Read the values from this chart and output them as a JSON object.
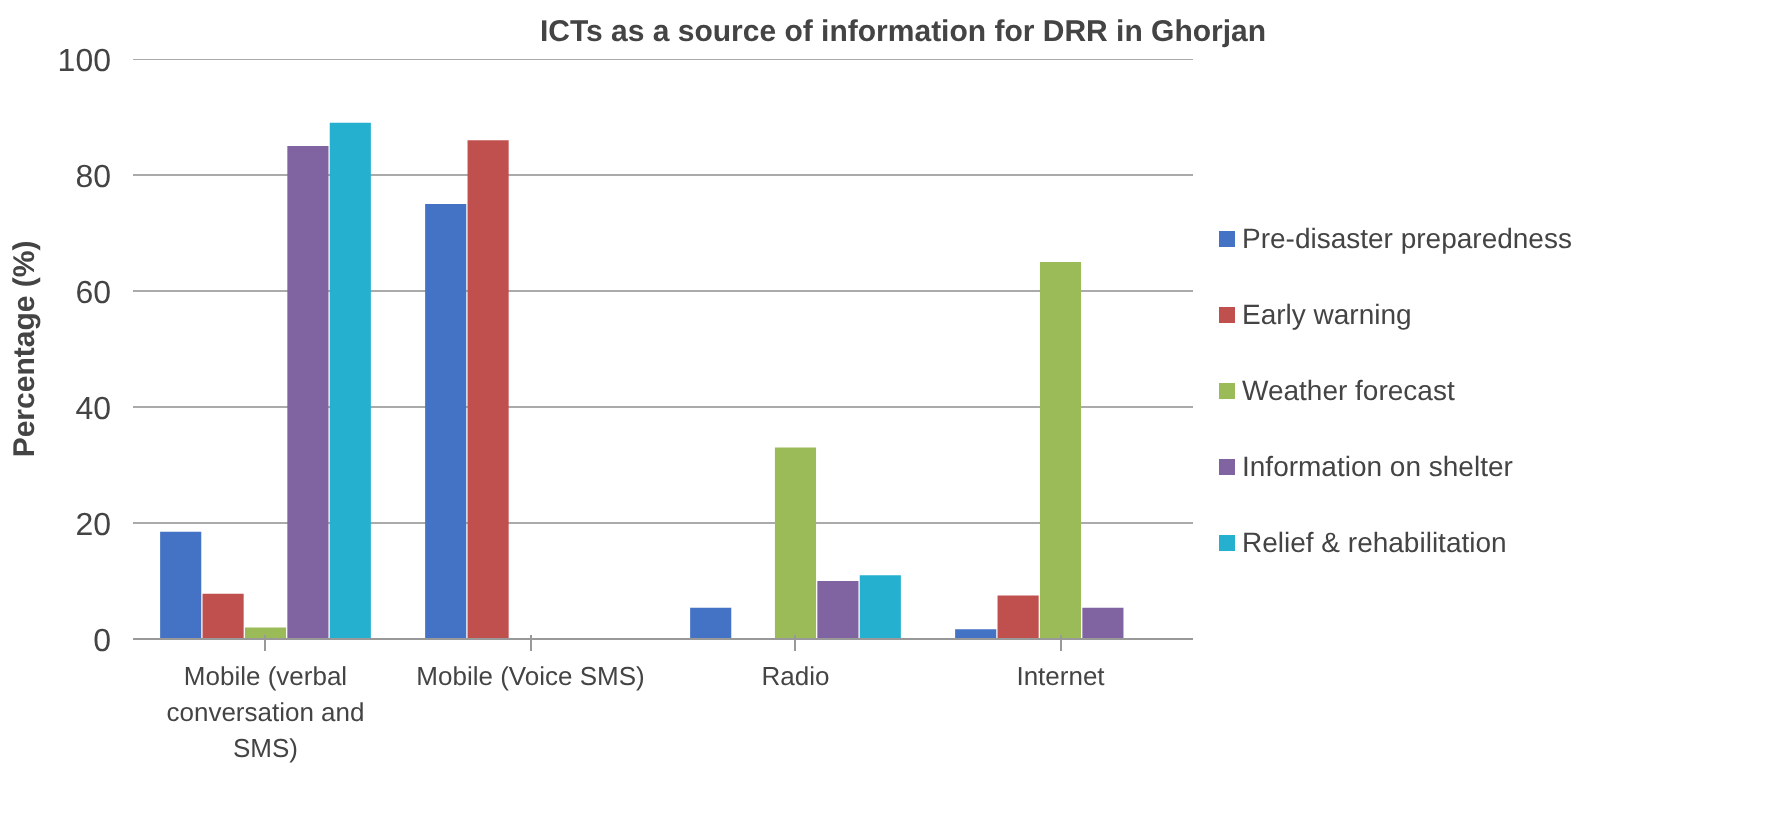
{
  "chart_data": {
    "type": "bar",
    "title": "ICTs as a source of information for DRR in Ghorjan",
    "ylabel": "Percentage (%)",
    "categories": [
      "Mobile (verbal conversation and SMS)",
      "Mobile (Voice SMS)",
      "Radio",
      "Internet"
    ],
    "series": [
      {
        "name": "Pre-disaster preparedness",
        "color": "#4472c4",
        "values": [
          18.5,
          75,
          5.4,
          1.7
        ]
      },
      {
        "name": "Early warning",
        "color": "#c0504d",
        "values": [
          7.8,
          86,
          0,
          7.5
        ]
      },
      {
        "name": "Weather forecast",
        "color": "#9bbb59",
        "values": [
          2,
          0,
          33,
          65
        ]
      },
      {
        "name": "Information on shelter",
        "color": "#8064a2",
        "values": [
          85,
          0,
          10,
          5.4
        ]
      },
      {
        "name": "Relief & rehabilitation",
        "color": "#25b0cf",
        "values": [
          89,
          0,
          11,
          0
        ]
      }
    ],
    "ylim": [
      0,
      100
    ],
    "yticks": [
      0,
      20,
      40,
      60,
      80,
      100
    ],
    "grid": "y",
    "legend": "right"
  }
}
